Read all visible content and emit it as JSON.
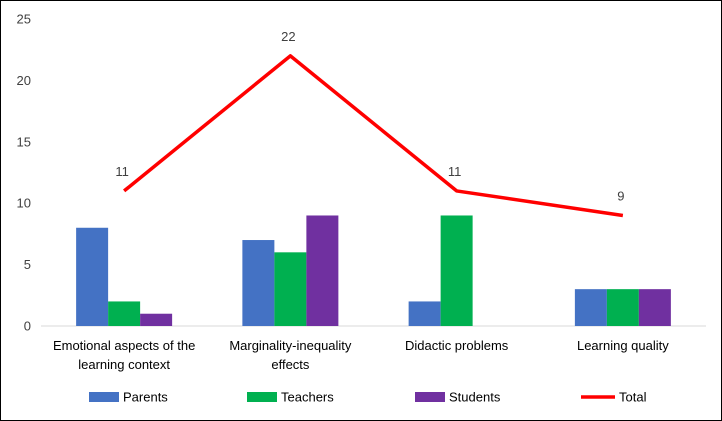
{
  "chart_data": {
    "type": "bar",
    "title": "",
    "xlabel": "",
    "ylabel": "",
    "ylim": [
      0,
      25
    ],
    "yticks": [
      0,
      5,
      10,
      15,
      20,
      25
    ],
    "grid": false,
    "legend_position": "bottom",
    "categories": [
      [
        "Emotional aspects of the",
        "learning context"
      ],
      [
        "Marginality-inequality",
        "effects"
      ],
      [
        "Didactic problems"
      ],
      [
        "Learning quality"
      ]
    ],
    "series": [
      {
        "name": "Parents",
        "kind": "bar",
        "color": "#4472C4",
        "values": [
          8,
          7,
          2,
          3
        ]
      },
      {
        "name": "Teachers",
        "kind": "bar",
        "color": "#00B050",
        "values": [
          2,
          6,
          9,
          3
        ]
      },
      {
        "name": "Students",
        "kind": "bar",
        "color": "#7030A0",
        "values": [
          1,
          9,
          0,
          3
        ]
      },
      {
        "name": "Total",
        "kind": "line",
        "color": "#FF0000",
        "values": [
          11,
          22,
          11,
          9
        ],
        "data_labels": [
          "11",
          "22",
          "11",
          "9"
        ]
      }
    ]
  }
}
